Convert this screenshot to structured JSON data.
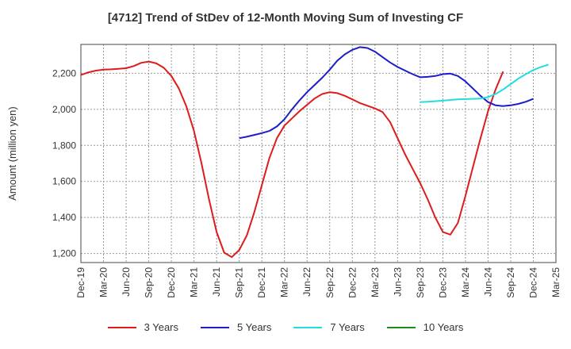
{
  "chart_data": {
    "type": "line",
    "title": "[4712]  Trend of StDev of 12-Month Moving Sum of Investing CF",
    "xlabel": "",
    "ylabel": "Amount (million yen)",
    "ylim": [
      1150,
      2360
    ],
    "yticks": [
      1200,
      1400,
      1600,
      1800,
      2000,
      2200
    ],
    "ytick_labels": [
      "1,200",
      "1,400",
      "1,600",
      "1,800",
      "2,000",
      "2,200"
    ],
    "x_start": "Dec-19",
    "xtick_labels": [
      "Dec-19",
      "Mar-20",
      "Jun-20",
      "Sep-20",
      "Dec-20",
      "Mar-21",
      "Jun-21",
      "Sep-21",
      "Dec-21",
      "Mar-22",
      "Jun-22",
      "Sep-22",
      "Dec-22",
      "Mar-23",
      "Jun-23",
      "Sep-23",
      "Dec-23",
      "Mar-24",
      "Jun-24",
      "Sep-24",
      "Dec-24",
      "Mar-25"
    ],
    "grid": true,
    "legend_position": "bottom",
    "series": [
      {
        "name": "3 Years",
        "color": "#dd1c1c",
        "start": "Dec-19",
        "values": [
          2190,
          2205,
          2215,
          2220,
          2222,
          2225,
          2228,
          2240,
          2258,
          2265,
          2255,
          2230,
          2185,
          2115,
          2015,
          1880,
          1700,
          1500,
          1320,
          1205,
          1180,
          1220,
          1300,
          1430,
          1580,
          1730,
          1840,
          1910,
          1950,
          1990,
          2025,
          2060,
          2085,
          2095,
          2090,
          2075,
          2055,
          2035,
          2020,
          2005,
          1985,
          1930,
          1840,
          1750,
          1670,
          1590,
          1500,
          1400,
          1320,
          1305,
          1370,
          1520,
          1680,
          1840,
          1990,
          2110,
          2210
        ]
      },
      {
        "name": "5 Years",
        "color": "#1c1ccc",
        "start": "Sep-21",
        "values": [
          1840,
          1848,
          1858,
          1868,
          1880,
          1905,
          1945,
          2000,
          2050,
          2095,
          2135,
          2175,
          2220,
          2270,
          2305,
          2330,
          2345,
          2340,
          2320,
          2290,
          2260,
          2235,
          2215,
          2195,
          2178,
          2180,
          2185,
          2195,
          2198,
          2185,
          2155,
          2115,
          2075,
          2040,
          2022,
          2018,
          2022,
          2030,
          2042,
          2058
        ]
      },
      {
        "name": "7 Years",
        "color": "#22dddd",
        "start": "Sep-23",
        "values": [
          2040,
          2042,
          2045,
          2048,
          2052,
          2055,
          2057,
          2058,
          2060,
          2068,
          2085,
          2110,
          2140,
          2170,
          2195,
          2218,
          2235,
          2248
        ]
      },
      {
        "name": "10 Years",
        "color": "#1c8c1c",
        "start": "Dec-24",
        "values": []
      }
    ]
  }
}
